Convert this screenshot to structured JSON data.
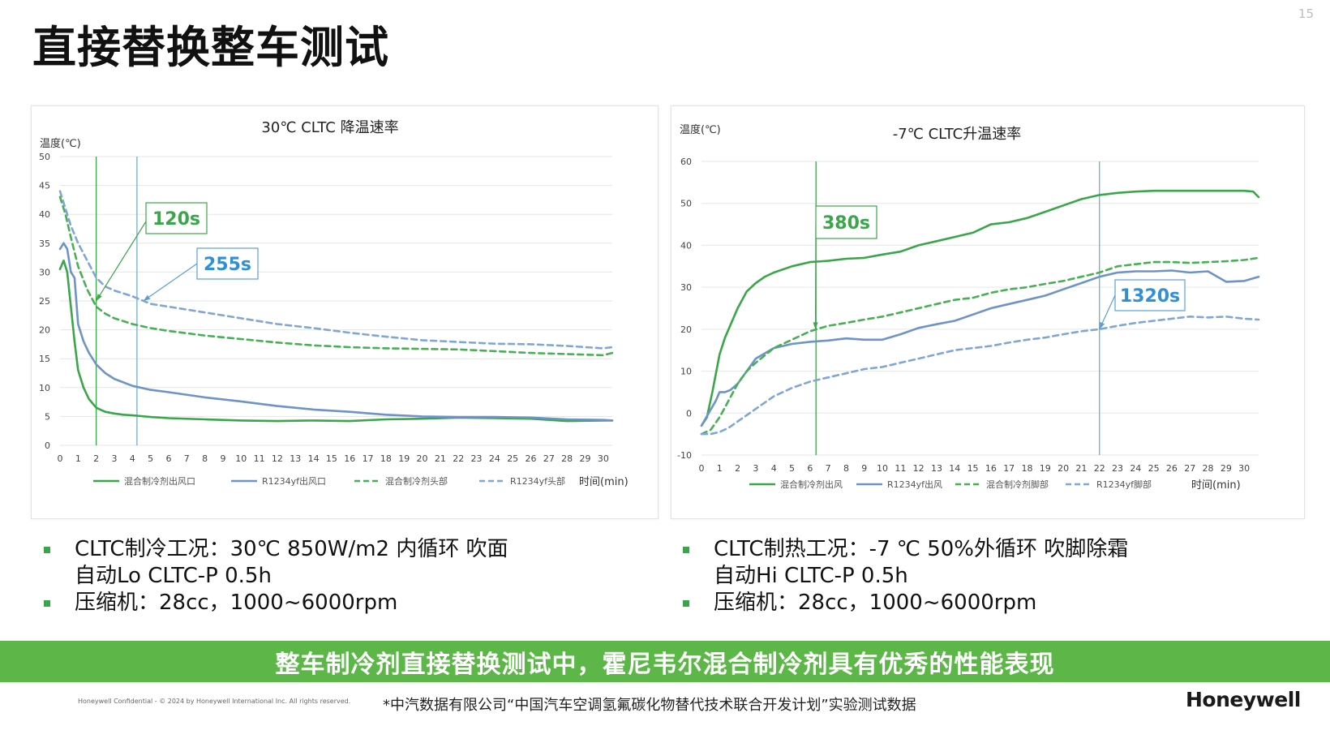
{
  "page_number": "15",
  "title": "直接替换整车测试",
  "colors": {
    "green": "#3aa64a",
    "blue": "#6d93c9",
    "green_dash": "#47b052",
    "blue_dash": "#7fa6d6",
    "banner": "#5cb748",
    "callout_blue": "#2f8fd8"
  },
  "chart_data": [
    {
      "type": "line",
      "title": "30℃ CLTC 降温速率",
      "ylabel": "温度(℃)",
      "xlabel": "时间(min)",
      "xlim": [
        0,
        30.5
      ],
      "ylim": [
        0,
        50
      ],
      "y_ticks": [
        0,
        5,
        10,
        15,
        20,
        25,
        30,
        35,
        40,
        45,
        50
      ],
      "x_ticks": [
        0,
        1,
        2,
        3,
        4,
        5,
        6,
        7,
        8,
        9,
        10,
        11,
        12,
        13,
        14,
        15,
        16,
        17,
        18,
        19,
        20,
        21,
        22,
        23,
        24,
        25,
        26,
        27,
        28,
        29,
        30
      ],
      "grid": "horizontal",
      "legend_position": "bottom",
      "vlines": [
        2,
        4.25
      ],
      "callouts": [
        {
          "text": "120s",
          "color": "green",
          "arrow_to": [
            2,
            25
          ]
        },
        {
          "text": "255s",
          "color": "blue",
          "arrow_to": [
            4.6,
            25
          ]
        }
      ],
      "series": [
        {
          "name": "混合制冷剂出风口",
          "style": "solid",
          "color": "green",
          "x": [
            0,
            0.2,
            0.4,
            0.6,
            0.8,
            1.0,
            1.3,
            1.6,
            2.0,
            2.5,
            3.0,
            3.5,
            4,
            5,
            6,
            8,
            10,
            12,
            14,
            16,
            18,
            20,
            22,
            24,
            26,
            28,
            30,
            30.5
          ],
          "y": [
            30.5,
            32,
            30,
            24,
            18,
            13,
            10,
            8,
            6.5,
            5.8,
            5.5,
            5.3,
            5.2,
            4.9,
            4.7,
            4.5,
            4.3,
            4.2,
            4.3,
            4.2,
            4.5,
            4.6,
            4.8,
            4.7,
            4.6,
            4.2,
            4.3,
            4.3
          ]
        },
        {
          "name": "R1234yf出风口",
          "style": "solid",
          "color": "blue",
          "x": [
            0,
            0.2,
            0.4,
            0.6,
            0.8,
            1.0,
            1.3,
            1.6,
            2.0,
            2.5,
            3,
            4,
            5,
            6,
            8,
            10,
            12,
            14,
            16,
            18,
            20,
            22,
            24,
            26,
            28,
            30,
            30.5
          ],
          "y": [
            34,
            35,
            34,
            30,
            29,
            21,
            18,
            16,
            14,
            12.5,
            11.5,
            10.3,
            9.6,
            9.2,
            8.3,
            7.6,
            6.8,
            6.2,
            5.8,
            5.3,
            5.0,
            4.9,
            4.9,
            4.8,
            4.5,
            4.4,
            4.3
          ]
        },
        {
          "name": "混合制冷剂头部",
          "style": "dash",
          "color": "green_dash",
          "x": [
            0,
            0.3,
            0.6,
            1.0,
            1.5,
            2.0,
            2.5,
            3,
            4,
            5,
            6,
            8,
            10,
            12,
            14,
            16,
            18,
            20,
            22,
            24,
            26,
            28,
            30,
            30.5
          ],
          "y": [
            43,
            40,
            36,
            31,
            27,
            24,
            22.8,
            22,
            21,
            20.3,
            19.8,
            19,
            18.4,
            17.8,
            17.3,
            17,
            16.8,
            16.7,
            16.6,
            16.3,
            16,
            15.8,
            15.6,
            16
          ]
        },
        {
          "name": "R1234yf头部",
          "style": "dash",
          "color": "blue_dash",
          "x": [
            0,
            0.3,
            0.6,
            1.0,
            1.5,
            2.0,
            2.5,
            3,
            4,
            5,
            6,
            8,
            10,
            12,
            14,
            16,
            18,
            20,
            22,
            24,
            26,
            28,
            30,
            30.5
          ],
          "y": [
            44,
            41,
            38,
            35,
            32,
            29,
            27.5,
            26.8,
            25.8,
            24.5,
            24,
            23,
            22,
            21,
            20.3,
            19.5,
            18.8,
            18.2,
            17.9,
            17.6,
            17.5,
            17.2,
            16.8,
            17
          ]
        }
      ]
    },
    {
      "type": "line",
      "title": "-7℃ CLTC升温速率",
      "ylabel": "温度(℃)",
      "xlabel": "时间(min)",
      "xlim": [
        0,
        30.8
      ],
      "ylim": [
        -10,
        60
      ],
      "y_ticks": [
        -10,
        0,
        10,
        20,
        30,
        40,
        50,
        60
      ],
      "x_ticks": [
        0,
        1,
        2,
        3,
        4,
        5,
        6,
        7,
        8,
        9,
        10,
        11,
        12,
        13,
        14,
        15,
        16,
        17,
        18,
        19,
        20,
        21,
        22,
        23,
        24,
        25,
        26,
        27,
        28,
        29,
        30
      ],
      "grid": "horizontal",
      "legend_position": "bottom",
      "vlines": [
        6.33,
        22
      ],
      "callouts": [
        {
          "text": "380s",
          "color": "green",
          "arrow_to": [
            6.3,
            20
          ]
        },
        {
          "text": "1320s",
          "color": "blue",
          "arrow_to": [
            22,
            20
          ]
        }
      ],
      "series": [
        {
          "name": "混合制冷剂出风",
          "style": "solid",
          "color": "green",
          "x": [
            0,
            0.3,
            0.6,
            1.0,
            1.3,
            1.6,
            2,
            2.5,
            3,
            3.5,
            4,
            5,
            6,
            7,
            8,
            9,
            10,
            11,
            12,
            13,
            14,
            15,
            16,
            17,
            18,
            19,
            20,
            21,
            22,
            23,
            24,
            25,
            26,
            27,
            28,
            29,
            30,
            30.5,
            30.8
          ],
          "y": [
            -3,
            -1,
            5,
            14,
            18,
            21,
            25,
            29,
            31,
            32.5,
            33.5,
            35,
            36,
            36.3,
            36.8,
            37,
            37.8,
            38.5,
            40,
            41,
            42,
            43,
            45,
            45.5,
            46.5,
            48,
            49.5,
            51,
            52,
            52.5,
            52.8,
            53,
            53,
            53,
            53,
            53,
            53,
            52.8,
            51.5
          ]
        },
        {
          "name": "R1234yf出风",
          "style": "solid",
          "color": "blue",
          "x": [
            0,
            0.4,
            0.8,
            1.0,
            1.3,
            1.6,
            2,
            2.5,
            3,
            4,
            5,
            6,
            7,
            8,
            9,
            10,
            11,
            12,
            13,
            14,
            15,
            16,
            17,
            18,
            19,
            20,
            21,
            22,
            23,
            24,
            25,
            26,
            27,
            28,
            29,
            30,
            30.8
          ],
          "y": [
            -3,
            0,
            3,
            5,
            5,
            5.5,
            7,
            10,
            13,
            15.5,
            16.5,
            17,
            17.3,
            17.8,
            17.5,
            17.5,
            18.8,
            20.3,
            21.2,
            22,
            23.5,
            25,
            26,
            27,
            28,
            29.5,
            31,
            32.5,
            33.5,
            33.8,
            33.8,
            34,
            33.5,
            33.8,
            31.3,
            31.5,
            32.5
          ]
        },
        {
          "name": "混合制冷剂脚部",
          "style": "dash",
          "color": "green_dash",
          "x": [
            0,
            0.5,
            1,
            1.5,
            2,
            2.5,
            3,
            4,
            5,
            6,
            7,
            8,
            9,
            10,
            11,
            12,
            13,
            14,
            15,
            16,
            17,
            18,
            19,
            20,
            21,
            22,
            23,
            24,
            25,
            26,
            27,
            28,
            29,
            30,
            30.8
          ],
          "y": [
            -5,
            -4,
            -1,
            3,
            7,
            10,
            12,
            15.5,
            17.5,
            19.5,
            20.8,
            21.5,
            22.3,
            23,
            24,
            25,
            26,
            27,
            27.5,
            28.7,
            29.5,
            30,
            30.8,
            31.5,
            32.5,
            33.5,
            35,
            35.5,
            36,
            36,
            35.8,
            36,
            36.2,
            36.5,
            37
          ]
        },
        {
          "name": "R1234yf脚部",
          "style": "dash",
          "color": "blue_dash",
          "x": [
            0,
            0.5,
            1,
            1.5,
            2,
            3,
            4,
            5,
            6,
            7,
            8,
            9,
            10,
            11,
            12,
            13,
            14,
            15,
            16,
            17,
            18,
            19,
            20,
            21,
            22,
            23,
            24,
            25,
            26,
            27,
            28,
            29,
            30,
            30.8
          ],
          "y": [
            -5,
            -5,
            -4.5,
            -3.5,
            -2,
            1,
            4,
            6,
            7.5,
            8.5,
            9.5,
            10.5,
            11,
            12,
            13,
            14,
            15,
            15.5,
            16,
            16.8,
            17.5,
            18,
            18.8,
            19.5,
            20,
            20.8,
            21.5,
            22,
            22.5,
            23,
            22.8,
            23,
            22.5,
            22.3
          ]
        }
      ]
    }
  ],
  "bullets_left": [
    {
      "lines": [
        "CLTC制冷工况：30℃ 850W/m2 内循环  吹面",
        "自动Lo CLTC-P 0.5h"
      ]
    },
    {
      "lines": [
        "压缩机：28cc，1000~6000rpm"
      ]
    }
  ],
  "bullets_right": [
    {
      "lines": [
        "CLTC制热工况：-7 ℃  50%外循环 吹脚除霜",
        "自动Hi CLTC-P 0.5h"
      ]
    },
    {
      "lines": [
        "压缩机：28cc，1000~6000rpm"
      ]
    }
  ],
  "banner": "整车制冷剂直接替换测试中，霍尼韦尔混合制冷剂具有优秀的性能表现",
  "confidential": "Honeywell Confidential - © 2024 by Honeywell International Inc. All rights reserved.",
  "source_note": "*中汽数据有限公司“中国汽车空调氢氟碳化物替代技术联合开发计划”实验测试数据",
  "brand": "Honeywell"
}
